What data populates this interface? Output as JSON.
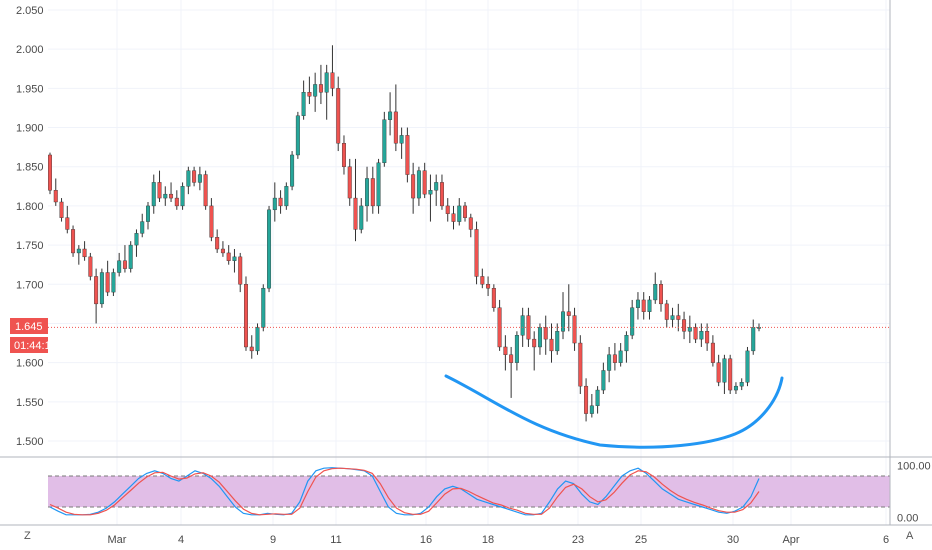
{
  "chart_data": [
    {
      "type": "candlestick",
      "ylim": [
        1.48,
        2.06
      ],
      "y_ticks": [
        "2.050",
        "2.000",
        "1.950",
        "1.900",
        "1.850",
        "1.800",
        "1.750",
        "1.700",
        "1.650",
        "1.600",
        "1.550",
        "1.500"
      ],
      "x_ticks": [
        "Mar",
        "4",
        "9",
        "11",
        "16",
        "18",
        "23",
        "25",
        "30",
        "Apr",
        "6"
      ],
      "last_price_label": "1.645",
      "countdown_label": "01:44:1",
      "last_price": 1.645,
      "candles": [
        [
          1.865,
          1.868,
          1.815,
          1.82
        ],
        [
          1.82,
          1.835,
          1.8,
          1.805
        ],
        [
          1.805,
          1.81,
          1.78,
          1.785
        ],
        [
          1.785,
          1.8,
          1.765,
          1.77
        ],
        [
          1.77,
          1.775,
          1.735,
          1.74
        ],
        [
          1.74,
          1.75,
          1.725,
          1.745
        ],
        [
          1.745,
          1.755,
          1.73,
          1.735
        ],
        [
          1.735,
          1.74,
          1.705,
          1.71
        ],
        [
          1.71,
          1.72,
          1.65,
          1.675
        ],
        [
          1.675,
          1.72,
          1.67,
          1.715
        ],
        [
          1.715,
          1.73,
          1.685,
          1.69
        ],
        [
          1.69,
          1.72,
          1.685,
          1.715
        ],
        [
          1.715,
          1.74,
          1.71,
          1.73
        ],
        [
          1.73,
          1.75,
          1.715,
          1.72
        ],
        [
          1.72,
          1.755,
          1.715,
          1.75
        ],
        [
          1.75,
          1.77,
          1.735,
          1.765
        ],
        [
          1.765,
          1.79,
          1.76,
          1.78
        ],
        [
          1.78,
          1.805,
          1.77,
          1.8
        ],
        [
          1.8,
          1.84,
          1.79,
          1.83
        ],
        [
          1.83,
          1.845,
          1.805,
          1.81
        ],
        [
          1.81,
          1.825,
          1.8,
          1.815
        ],
        [
          1.815,
          1.83,
          1.805,
          1.81
        ],
        [
          1.81,
          1.82,
          1.795,
          1.8
        ],
        [
          1.8,
          1.83,
          1.795,
          1.825
        ],
        [
          1.825,
          1.85,
          1.815,
          1.845
        ],
        [
          1.845,
          1.85,
          1.825,
          1.83
        ],
        [
          1.83,
          1.85,
          1.82,
          1.84
        ],
        [
          1.84,
          1.845,
          1.795,
          1.8
        ],
        [
          1.8,
          1.81,
          1.755,
          1.76
        ],
        [
          1.76,
          1.77,
          1.74,
          1.745
        ],
        [
          1.745,
          1.755,
          1.735,
          1.74
        ],
        [
          1.74,
          1.75,
          1.725,
          1.73
        ],
        [
          1.73,
          1.745,
          1.715,
          1.735
        ],
        [
          1.735,
          1.74,
          1.69,
          1.7
        ],
        [
          1.7,
          1.71,
          1.615,
          1.62
        ],
        [
          1.62,
          1.635,
          1.605,
          1.615
        ],
        [
          1.615,
          1.65,
          1.61,
          1.645
        ],
        [
          1.645,
          1.7,
          1.64,
          1.695
        ],
        [
          1.695,
          1.8,
          1.69,
          1.795
        ],
        [
          1.795,
          1.83,
          1.78,
          1.81
        ],
        [
          1.81,
          1.82,
          1.79,
          1.8
        ],
        [
          1.8,
          1.83,
          1.795,
          1.825
        ],
        [
          1.825,
          1.87,
          1.82,
          1.865
        ],
        [
          1.865,
          1.92,
          1.86,
          1.915
        ],
        [
          1.915,
          1.96,
          1.91,
          1.945
        ],
        [
          1.945,
          1.965,
          1.93,
          1.94
        ],
        [
          1.94,
          1.97,
          1.92,
          1.955
        ],
        [
          1.955,
          1.98,
          1.93,
          1.945
        ],
        [
          1.945,
          1.98,
          1.91,
          1.97
        ],
        [
          1.97,
          2.005,
          1.94,
          1.95
        ],
        [
          1.95,
          1.965,
          1.87,
          1.88
        ],
        [
          1.88,
          1.89,
          1.84,
          1.85
        ],
        [
          1.85,
          1.86,
          1.8,
          1.81
        ],
        [
          1.81,
          1.86,
          1.755,
          1.77
        ],
        [
          1.77,
          1.81,
          1.765,
          1.8
        ],
        [
          1.8,
          1.85,
          1.78,
          1.835
        ],
        [
          1.835,
          1.85,
          1.79,
          1.8
        ],
        [
          1.8,
          1.86,
          1.79,
          1.855
        ],
        [
          1.855,
          1.92,
          1.85,
          1.91
        ],
        [
          1.91,
          1.945,
          1.89,
          1.92
        ],
        [
          1.92,
          1.955,
          1.87,
          1.88
        ],
        [
          1.88,
          1.9,
          1.86,
          1.89
        ],
        [
          1.89,
          1.9,
          1.83,
          1.84
        ],
        [
          1.84,
          1.855,
          1.79,
          1.81
        ],
        [
          1.81,
          1.85,
          1.8,
          1.845
        ],
        [
          1.845,
          1.855,
          1.81,
          1.815
        ],
        [
          1.815,
          1.84,
          1.78,
          1.82
        ],
        [
          1.82,
          1.84,
          1.8,
          1.83
        ],
        [
          1.83,
          1.84,
          1.795,
          1.8
        ],
        [
          1.8,
          1.81,
          1.78,
          1.79
        ],
        [
          1.79,
          1.8,
          1.77,
          1.78
        ],
        [
          1.78,
          1.81,
          1.775,
          1.8
        ],
        [
          1.8,
          1.805,
          1.78,
          1.785
        ],
        [
          1.785,
          1.79,
          1.76,
          1.77
        ],
        [
          1.77,
          1.78,
          1.7,
          1.71
        ],
        [
          1.71,
          1.72,
          1.695,
          1.7
        ],
        [
          1.7,
          1.71,
          1.685,
          1.695
        ],
        [
          1.695,
          1.7,
          1.665,
          1.67
        ],
        [
          1.67,
          1.68,
          1.615,
          1.62
        ],
        [
          1.62,
          1.635,
          1.59,
          1.61
        ],
        [
          1.61,
          1.62,
          1.555,
          1.6
        ],
        [
          1.6,
          1.64,
          1.59,
          1.635
        ],
        [
          1.635,
          1.67,
          1.62,
          1.66
        ],
        [
          1.66,
          1.67,
          1.62,
          1.63
        ],
        [
          1.63,
          1.64,
          1.59,
          1.62
        ],
        [
          1.62,
          1.65,
          1.61,
          1.645
        ],
        [
          1.645,
          1.66,
          1.61,
          1.63
        ],
        [
          1.63,
          1.65,
          1.6,
          1.615
        ],
        [
          1.615,
          1.65,
          1.61,
          1.64
        ],
        [
          1.64,
          1.69,
          1.63,
          1.665
        ],
        [
          1.665,
          1.7,
          1.64,
          1.66
        ],
        [
          1.66,
          1.67,
          1.615,
          1.625
        ],
        [
          1.625,
          1.635,
          1.56,
          1.57
        ],
        [
          1.57,
          1.58,
          1.525,
          1.535
        ],
        [
          1.535,
          1.56,
          1.53,
          1.545
        ],
        [
          1.545,
          1.57,
          1.535,
          1.565
        ],
        [
          1.565,
          1.6,
          1.56,
          1.59
        ],
        [
          1.59,
          1.62,
          1.575,
          1.61
        ],
        [
          1.61,
          1.625,
          1.59,
          1.6
        ],
        [
          1.6,
          1.625,
          1.595,
          1.615
        ],
        [
          1.615,
          1.64,
          1.6,
          1.635
        ],
        [
          1.635,
          1.68,
          1.63,
          1.67
        ],
        [
          1.67,
          1.69,
          1.655,
          1.68
        ],
        [
          1.68,
          1.69,
          1.655,
          1.665
        ],
        [
          1.665,
          1.685,
          1.655,
          1.68
        ],
        [
          1.68,
          1.715,
          1.675,
          1.7
        ],
        [
          1.7,
          1.705,
          1.665,
          1.675
        ],
        [
          1.675,
          1.68,
          1.645,
          1.655
        ],
        [
          1.655,
          1.67,
          1.645,
          1.66
        ],
        [
          1.66,
          1.675,
          1.64,
          1.655
        ],
        [
          1.655,
          1.665,
          1.63,
          1.64
        ],
        [
          1.64,
          1.66,
          1.625,
          1.645
        ],
        [
          1.645,
          1.65,
          1.625,
          1.63
        ],
        [
          1.63,
          1.65,
          1.62,
          1.64
        ],
        [
          1.64,
          1.65,
          1.615,
          1.625
        ],
        [
          1.625,
          1.635,
          1.595,
          1.6
        ],
        [
          1.6,
          1.61,
          1.57,
          1.575
        ],
        [
          1.575,
          1.61,
          1.56,
          1.605
        ],
        [
          1.605,
          1.61,
          1.56,
          1.565
        ],
        [
          1.565,
          1.575,
          1.56,
          1.57
        ],
        [
          1.57,
          1.58,
          1.565,
          1.575
        ],
        [
          1.575,
          1.62,
          1.57,
          1.615
        ],
        [
          1.615,
          1.655,
          1.61,
          1.645
        ],
        [
          1.645,
          1.65,
          1.64,
          1.645
        ]
      ],
      "colors": {
        "up": "#26a69a",
        "down": "#ef5350",
        "price_line": "#ef5350",
        "annotation": "#2196f3"
      }
    },
    {
      "type": "line",
      "ylim": [
        -5,
        105
      ],
      "y_ticks": [
        "100.00",
        "0.00"
      ],
      "band": [
        20,
        80
      ],
      "series": [
        {
          "values": [
            20,
            12,
            5,
            5,
            5,
            6,
            10,
            18,
            30,
            45,
            60,
            75,
            85,
            90,
            85,
            75,
            70,
            80,
            90,
            85,
            75,
            60,
            40,
            20,
            8,
            5,
            5,
            8,
            6,
            5,
            8,
            30,
            70,
            90,
            95,
            96,
            95,
            94,
            92,
            90,
            80,
            50,
            20,
            8,
            5,
            5,
            8,
            20,
            40,
            55,
            60,
            55,
            45,
            35,
            30,
            25,
            20,
            15,
            10,
            5,
            5,
            8,
            30,
            55,
            70,
            65,
            45,
            30,
            25,
            40,
            60,
            80,
            90,
            95,
            85,
            70,
            55,
            45,
            35,
            30,
            25,
            20,
            15,
            10,
            8,
            12,
            20,
            40,
            75
          ],
          "color": "#2196f3"
        },
        {
          "values": [
            25,
            18,
            10,
            6,
            5,
            5,
            8,
            14,
            24,
            38,
            52,
            66,
            78,
            86,
            87,
            80,
            74,
            76,
            84,
            86,
            80,
            68,
            50,
            32,
            16,
            8,
            5,
            6,
            7,
            6,
            6,
            18,
            50,
            78,
            90,
            94,
            95,
            94,
            93,
            91,
            85,
            65,
            38,
            18,
            9,
            6,
            6,
            12,
            28,
            45,
            55,
            56,
            50,
            42,
            35,
            28,
            24,
            18,
            14,
            8,
            6,
            6,
            18,
            40,
            58,
            64,
            55,
            40,
            30,
            34,
            48,
            66,
            82,
            90,
            88,
            78,
            64,
            52,
            42,
            35,
            29,
            24,
            18,
            13,
            10,
            10,
            15,
            28,
            50
          ],
          "color": "#ef5350"
        }
      ],
      "band_fill": "#e1bee7"
    }
  ],
  "ui": {
    "corner_left": "Z",
    "corner_right": "A"
  }
}
